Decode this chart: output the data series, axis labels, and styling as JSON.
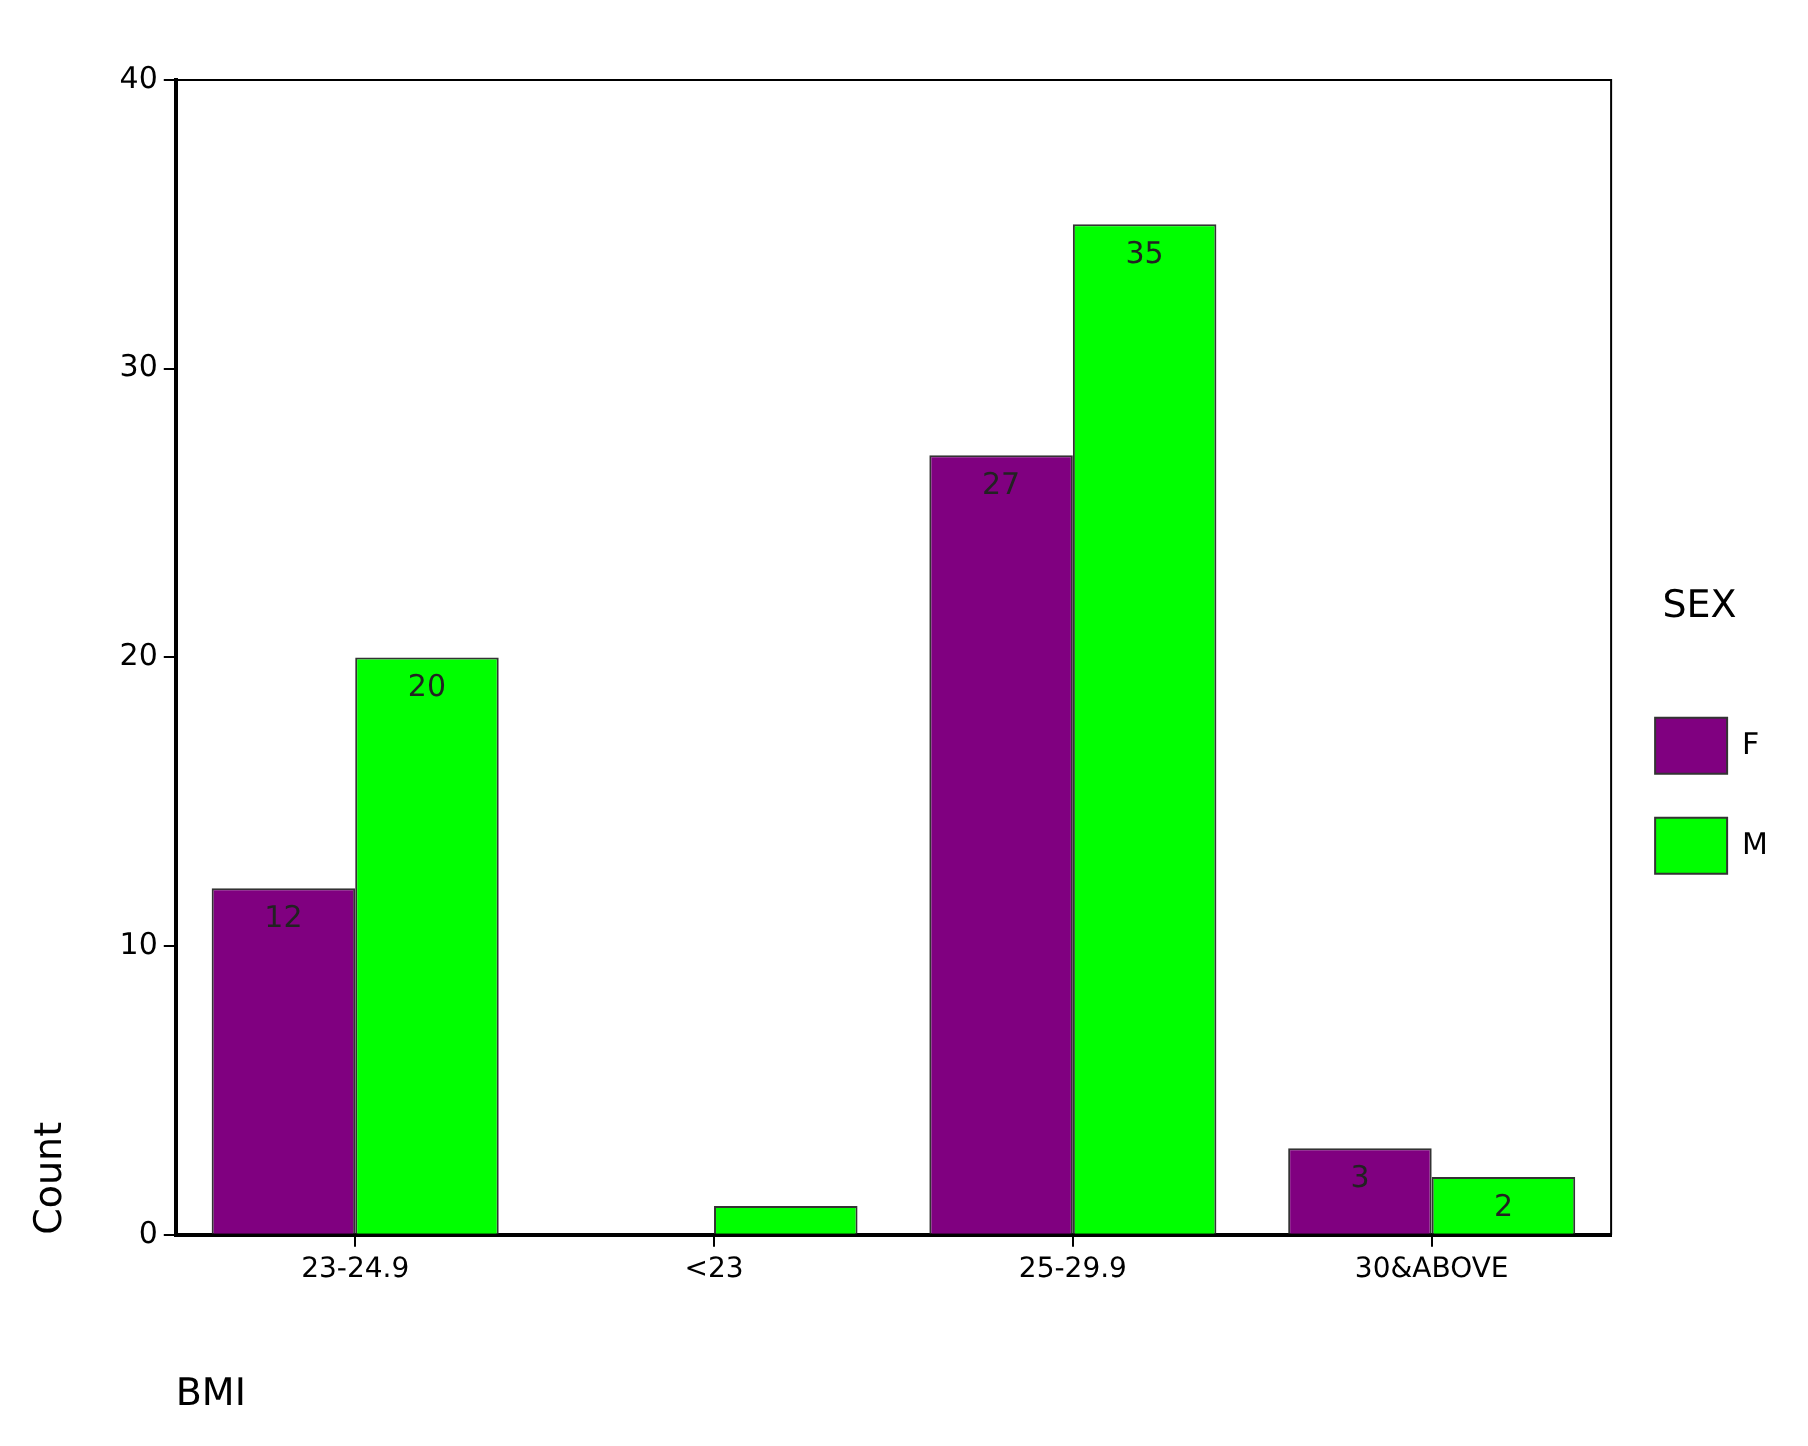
{
  "chart_data": {
    "type": "bar",
    "xlabel": "BMI",
    "ylabel": "Count",
    "legend_title": "SEX",
    "categories": [
      "23-24.9",
      "<23",
      "25-29.9",
      "30&ABOVE"
    ],
    "series": [
      {
        "name": "F",
        "color": "#800080",
        "values": [
          12,
          0,
          27,
          3
        ],
        "value_labels": [
          "12",
          null,
          "27",
          "3"
        ]
      },
      {
        "name": "M",
        "color": "#00ff00",
        "values": [
          20,
          1,
          35,
          2
        ],
        "value_labels": [
          "20",
          null,
          "35",
          "2"
        ]
      }
    ],
    "ylim": [
      0,
      40
    ],
    "yticks": [
      0,
      10,
      20,
      30,
      40
    ],
    "grid": false,
    "legend": "right"
  }
}
